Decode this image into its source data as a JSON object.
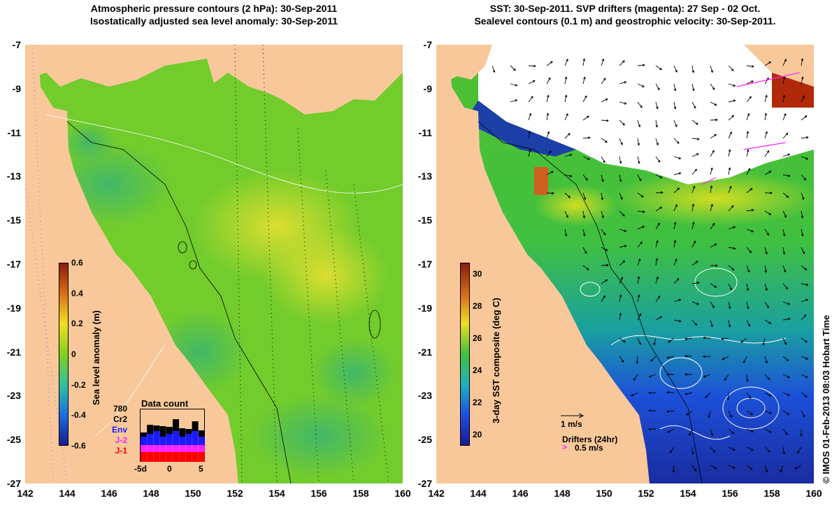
{
  "left_panel": {
    "title_line1": "Atmospheric pressure contours (2 hPa): 30-Sep-2011",
    "title_line2": "Isostatically adjusted sea level anomaly: 30-Sep-2011",
    "colorbar_label": "Sea level anomaly (m)",
    "colorbar_ticks": [
      "0.6",
      "0.4",
      "0.2",
      "0",
      "-0.2",
      "-0.4",
      "-0.6"
    ],
    "data_count": {
      "title": "Data count",
      "missions": [
        "780",
        "Cr2",
        "Env",
        "J-2",
        "J-1"
      ],
      "mission_colors": [
        "#000000",
        "#000000",
        "#1a1aff",
        "#ff22ff",
        "#ff0000"
      ],
      "x_ticks": [
        "-5d",
        "0",
        "5"
      ]
    }
  },
  "right_panel": {
    "title_line1": "SST: 30-Sep-2011. SVP drifters (magenta): 27 Sep - 02 Oct.",
    "title_line2": "Sealevel contours (0.1 m) and geostrophic velocity: 30-Sep-2011.",
    "colorbar_label": "3-day SST composite (deg C)",
    "colorbar_ticks": [
      "30",
      "28",
      "26",
      "24",
      "22",
      "20"
    ],
    "velocity_scale": "1 m/s",
    "drifters_label": "Drifters (24hr)",
    "drifters_speed": "0.5 m/s"
  },
  "axes": {
    "lat_ticks": [
      "-7",
      "-9",
      "-11",
      "-13",
      "-15",
      "-17",
      "-19",
      "-21",
      "-23",
      "-25",
      "-27"
    ],
    "lon_ticks": [
      "142",
      "144",
      "146",
      "148",
      "150",
      "152",
      "154",
      "156",
      "158",
      "160"
    ]
  },
  "credit": "© IMOS 01-Feb-2013 08:03 Hobart Time",
  "colors": {
    "land": "#f8c89a",
    "ocean_green": "#7ed321",
    "shelf_green": "#4cc44c",
    "sst_blue": "#1c3fd6",
    "cloud_white": "#ffffff"
  }
}
